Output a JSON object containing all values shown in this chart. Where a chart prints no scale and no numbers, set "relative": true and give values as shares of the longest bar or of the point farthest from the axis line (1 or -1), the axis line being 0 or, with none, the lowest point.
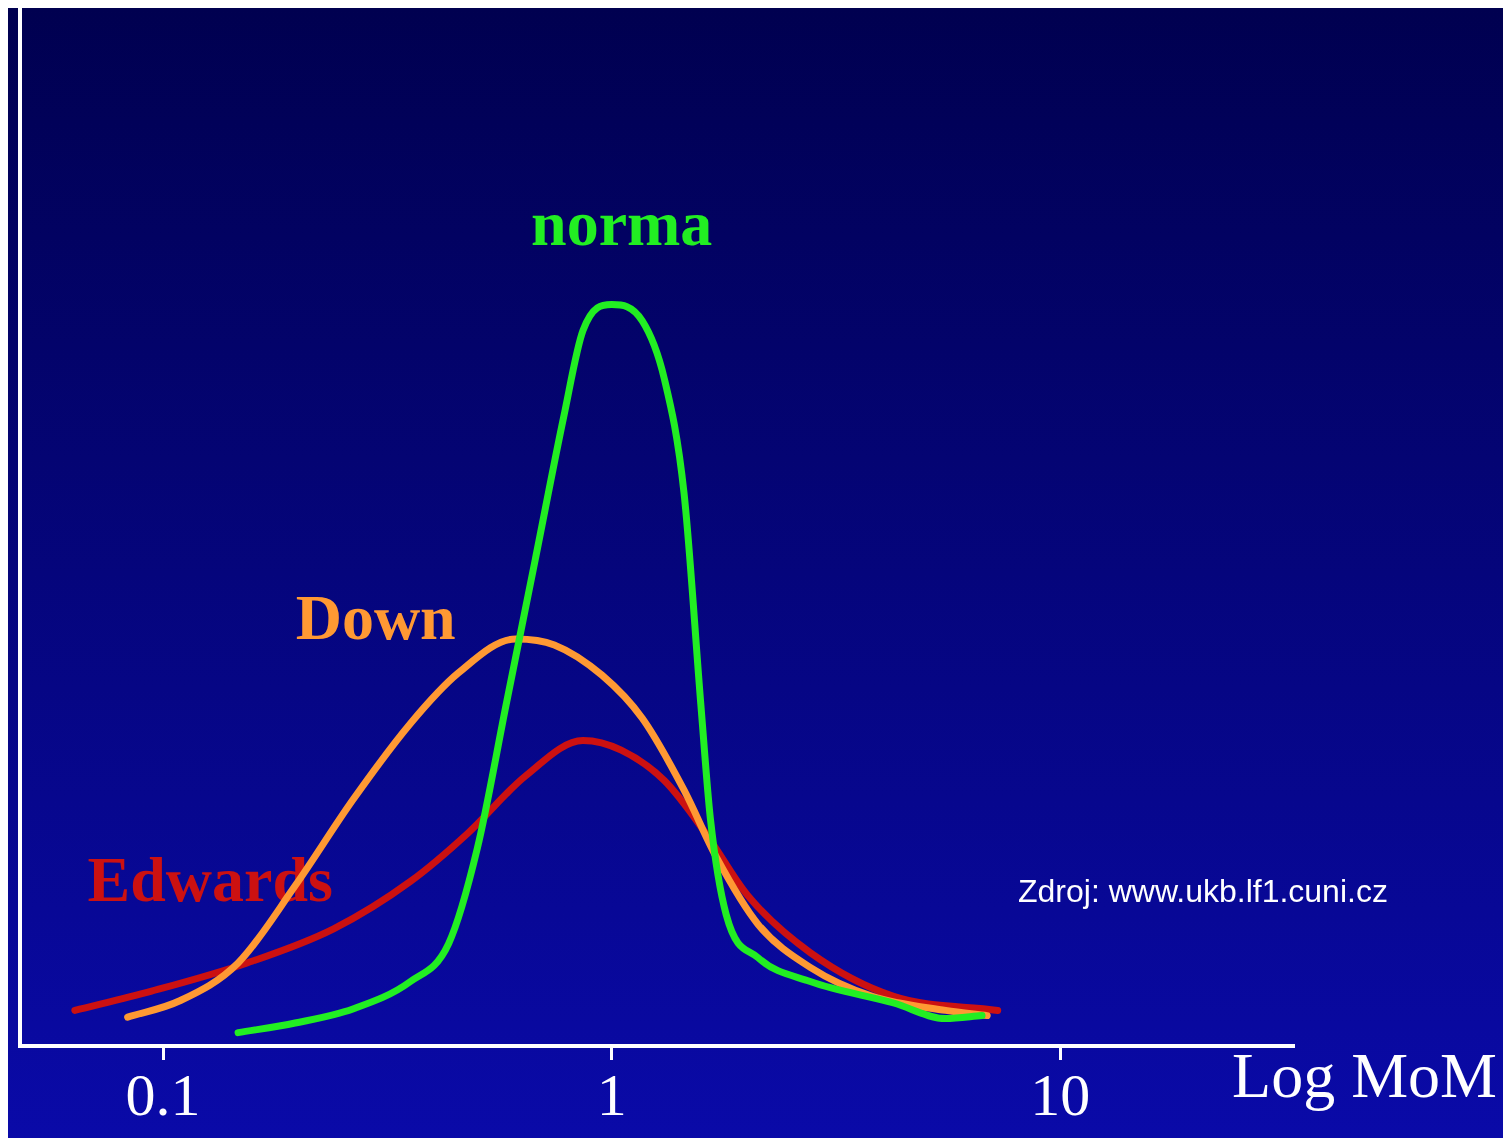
{
  "chart_data": {
    "type": "line",
    "relative": true,
    "xlabel": "Log MoM",
    "log": "x",
    "xlim": [
      0.048,
      33
    ],
    "xticks": [
      0.1,
      1,
      10
    ],
    "grid": false,
    "legend": false,
    "marker": "none",
    "line_style": "solid",
    "annotations": [
      "Zdroj: www.ukb.lf1.cuni.cz"
    ],
    "series": [
      {
        "name": "norma",
        "color": "#22ee22",
        "x": [
          0.147,
          0.197,
          0.265,
          0.356,
          0.433,
          0.502,
          0.582,
          0.675,
          0.782,
          0.863,
          1,
          1.17,
          1.31,
          1.45,
          1.58,
          1.66,
          1.8,
          2.12,
          2.77,
          4.25,
          5.55,
          6.69
        ],
        "values": [
          0.018,
          0.031,
          0.05,
          0.087,
          0.138,
          0.267,
          0.461,
          0.655,
          0.849,
          0.965,
          1,
          0.978,
          0.9,
          0.745,
          0.461,
          0.306,
          0.177,
          0.119,
          0.087,
          0.058,
          0.037,
          0.041
        ]
      },
      {
        "name": "Down",
        "color": "#ff9933",
        "x": [
          0.0834,
          0.109,
          0.147,
          0.197,
          0.265,
          0.356,
          0.455,
          0.611,
          0.745,
          0.952,
          1.17,
          1.45,
          1.71,
          2.12,
          2.77,
          3.81,
          5.55,
          6.87
        ],
        "values": [
          0.039,
          0.061,
          0.112,
          0.216,
          0.332,
          0.435,
          0.503,
          0.549,
          0.541,
          0.5,
          0.442,
          0.345,
          0.255,
          0.164,
          0.106,
          0.067,
          0.048,
          0.041
        ]
      },
      {
        "name": "Edwards",
        "color": "#cc1111",
        "x": [
          0.0636,
          0.0943,
          0.154,
          0.24,
          0.356,
          0.478,
          0.642,
          0.863,
          1.05,
          1.31,
          1.62,
          2.01,
          2.77,
          4.25,
          7.25
        ],
        "values": [
          0.048,
          0.074,
          0.112,
          0.158,
          0.222,
          0.287,
          0.364,
          0.412,
          0.399,
          0.358,
          0.287,
          0.203,
          0.126,
          0.067,
          0.048
        ]
      }
    ]
  }
}
